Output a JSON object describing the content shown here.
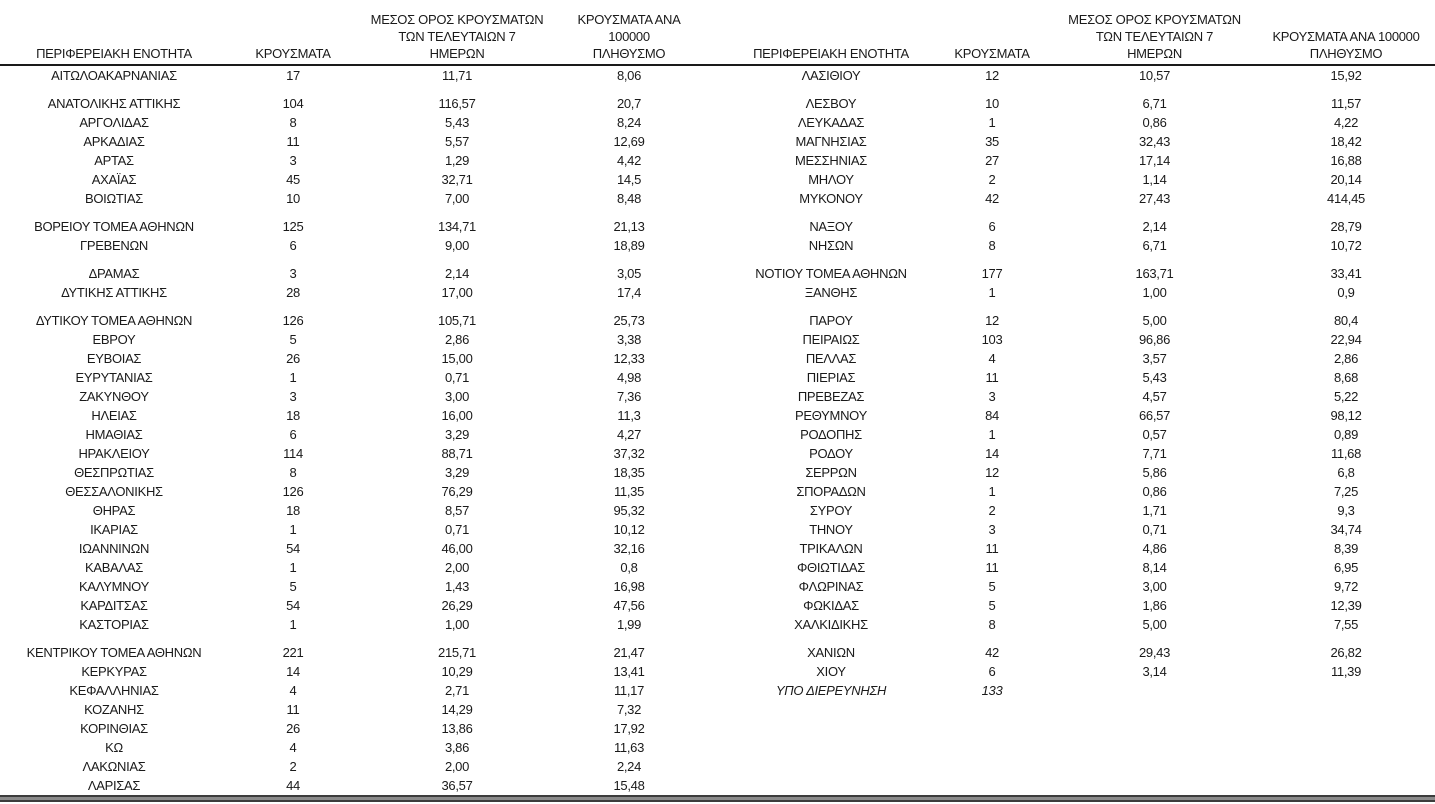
{
  "colors": {
    "text": "#1a1a1a",
    "header_rule": "#1a1a1a",
    "bottom_bar_fill": "#8a8a8a",
    "bottom_bar_edge": "#3c3c3c",
    "background": "#ffffff"
  },
  "table": {
    "headers": {
      "region": "ΠΕΡΙΦΕΡΕΙΑΚΗ ΕΝΟΤΗΤΑ",
      "cases": "ΚΡΟΥΣΜΑΤΑ",
      "avg7": "ΜΕΣΟΣ ΟΡΟΣ ΚΡΟΥΣΜΑΤΩΝ\nΤΩΝ ΤΕΛΕΥΤΑΙΩΝ 7\nΗΜΕΡΩΝ",
      "per100k": "ΚΡΟΥΣΜΑΤΑ ΑΝΑ 100000\nΠΛΗΘΥΣΜΟ"
    },
    "rows": [
      {
        "left": [
          "ΑΙΤΩΛΟΑΚΑΡΝΑΝΙΑΣ",
          "17",
          "11,71",
          "8,06"
        ],
        "right": [
          "ΛΑΣΙΘΙΟΥ",
          "12",
          "10,57",
          "15,92"
        ]
      },
      {
        "gap": true
      },
      {
        "left": [
          "ΑΝΑΤΟΛΙΚΗΣ ΑΤΤΙΚΗΣ",
          "104",
          "116,57",
          "20,7"
        ],
        "right": [
          "ΛΕΣΒΟΥ",
          "10",
          "6,71",
          "11,57"
        ]
      },
      {
        "left": [
          "ΑΡΓΟΛΙΔΑΣ",
          "8",
          "5,43",
          "8,24"
        ],
        "right": [
          "ΛΕΥΚΑΔΑΣ",
          "1",
          "0,86",
          "4,22"
        ]
      },
      {
        "left": [
          "ΑΡΚΑΔΙΑΣ",
          "11",
          "5,57",
          "12,69"
        ],
        "right": [
          "ΜΑΓΝΗΣΙΑΣ",
          "35",
          "32,43",
          "18,42"
        ]
      },
      {
        "left": [
          "ΑΡΤΑΣ",
          "3",
          "1,29",
          "4,42"
        ],
        "right": [
          "ΜΕΣΣΗΝΙΑΣ",
          "27",
          "17,14",
          "16,88"
        ]
      },
      {
        "left": [
          "ΑΧΑΪΑΣ",
          "45",
          "32,71",
          "14,5"
        ],
        "right": [
          "ΜΗΛΟΥ",
          "2",
          "1,14",
          "20,14"
        ]
      },
      {
        "left": [
          "ΒΟΙΩΤΙΑΣ",
          "10",
          "7,00",
          "8,48"
        ],
        "right": [
          "ΜΥΚΟΝΟΥ",
          "42",
          "27,43",
          "414,45"
        ]
      },
      {
        "gap": true
      },
      {
        "left": [
          "ΒΟΡΕΙΟΥ ΤΟΜΕΑ ΑΘΗΝΩΝ",
          "125",
          "134,71",
          "21,13"
        ],
        "right": [
          "ΝΑΞΟΥ",
          "6",
          "2,14",
          "28,79"
        ]
      },
      {
        "left": [
          "ΓΡΕΒΕΝΩΝ",
          "6",
          "9,00",
          "18,89"
        ],
        "right": [
          "ΝΗΣΩΝ",
          "8",
          "6,71",
          "10,72"
        ]
      },
      {
        "gap": true
      },
      {
        "left": [
          "ΔΡΑΜΑΣ",
          "3",
          "2,14",
          "3,05"
        ],
        "right": [
          "ΝΟΤΙΟΥ ΤΟΜΕΑ ΑΘΗΝΩΝ",
          "177",
          "163,71",
          "33,41"
        ]
      },
      {
        "left": [
          "ΔΥΤΙΚΗΣ ΑΤΤΙΚΗΣ",
          "28",
          "17,00",
          "17,4"
        ],
        "right": [
          "ΞΑΝΘΗΣ",
          "1",
          "1,00",
          "0,9"
        ]
      },
      {
        "gap": true
      },
      {
        "left": [
          "ΔΥΤΙΚΟΥ ΤΟΜΕΑ ΑΘΗΝΩΝ",
          "126",
          "105,71",
          "25,73"
        ],
        "right": [
          "ΠΑΡΟΥ",
          "12",
          "5,00",
          "80,4"
        ]
      },
      {
        "left": [
          "ΕΒΡΟΥ",
          "5",
          "2,86",
          "3,38"
        ],
        "right": [
          "ΠΕΙΡΑΙΩΣ",
          "103",
          "96,86",
          "22,94"
        ]
      },
      {
        "left": [
          "ΕΥΒΟΙΑΣ",
          "26",
          "15,00",
          "12,33"
        ],
        "right": [
          "ΠΕΛΛΑΣ",
          "4",
          "3,57",
          "2,86"
        ]
      },
      {
        "left": [
          "ΕΥΡΥΤΑΝΙΑΣ",
          "1",
          "0,71",
          "4,98"
        ],
        "right": [
          "ΠΙΕΡΙΑΣ",
          "11",
          "5,43",
          "8,68"
        ]
      },
      {
        "left": [
          "ΖΑΚΥΝΘΟΥ",
          "3",
          "3,00",
          "7,36"
        ],
        "right": [
          "ΠΡΕΒΕΖΑΣ",
          "3",
          "4,57",
          "5,22"
        ]
      },
      {
        "left": [
          "ΗΛΕΙΑΣ",
          "18",
          "16,00",
          "11,3"
        ],
        "right": [
          "ΡΕΘΥΜΝΟΥ",
          "84",
          "66,57",
          "98,12"
        ]
      },
      {
        "left": [
          "ΗΜΑΘΙΑΣ",
          "6",
          "3,29",
          "4,27"
        ],
        "right": [
          "ΡΟΔΟΠΗΣ",
          "1",
          "0,57",
          "0,89"
        ]
      },
      {
        "left": [
          "ΗΡΑΚΛΕΙΟΥ",
          "114",
          "88,71",
          "37,32"
        ],
        "right": [
          "ΡΟΔΟΥ",
          "14",
          "7,71",
          "11,68"
        ]
      },
      {
        "left": [
          "ΘΕΣΠΡΩΤΙΑΣ",
          "8",
          "3,29",
          "18,35"
        ],
        "right": [
          "ΣΕΡΡΩΝ",
          "12",
          "5,86",
          "6,8"
        ]
      },
      {
        "left": [
          "ΘΕΣΣΑΛΟΝΙΚΗΣ",
          "126",
          "76,29",
          "11,35"
        ],
        "right": [
          "ΣΠΟΡΑΔΩΝ",
          "1",
          "0,86",
          "7,25"
        ]
      },
      {
        "left": [
          "ΘΗΡΑΣ",
          "18",
          "8,57",
          "95,32"
        ],
        "right": [
          "ΣΥΡΟΥ",
          "2",
          "1,71",
          "9,3"
        ]
      },
      {
        "left": [
          "ΙΚΑΡΙΑΣ",
          "1",
          "0,71",
          "10,12"
        ],
        "right": [
          "ΤΗΝΟΥ",
          "3",
          "0,71",
          "34,74"
        ]
      },
      {
        "left": [
          "ΙΩΑΝΝΙΝΩΝ",
          "54",
          "46,00",
          "32,16"
        ],
        "right": [
          "ΤΡΙΚΑΛΩΝ",
          "11",
          "4,86",
          "8,39"
        ]
      },
      {
        "left": [
          "ΚΑΒΑΛΑΣ",
          "1",
          "2,00",
          "0,8"
        ],
        "right": [
          "ΦΘΙΩΤΙΔΑΣ",
          "11",
          "8,14",
          "6,95"
        ]
      },
      {
        "left": [
          "ΚΑΛΥΜΝΟΥ",
          "5",
          "1,43",
          "16,98"
        ],
        "right": [
          "ΦΛΩΡΙΝΑΣ",
          "5",
          "3,00",
          "9,72"
        ]
      },
      {
        "left": [
          "ΚΑΡΔΙΤΣΑΣ",
          "54",
          "26,29",
          "47,56"
        ],
        "right": [
          "ΦΩΚΙΔΑΣ",
          "5",
          "1,86",
          "12,39"
        ]
      },
      {
        "left": [
          "ΚΑΣΤΟΡΙΑΣ",
          "1",
          "1,00",
          "1,99"
        ],
        "right": [
          "ΧΑΛΚΙΔΙΚΗΣ",
          "8",
          "5,00",
          "7,55"
        ]
      },
      {
        "gap": true
      },
      {
        "left": [
          "ΚΕΝΤΡΙΚΟΥ ΤΟΜΕΑ ΑΘΗΝΩΝ",
          "221",
          "215,71",
          "21,47"
        ],
        "right": [
          "ΧΑΝΙΩΝ",
          "42",
          "29,43",
          "26,82"
        ]
      },
      {
        "left": [
          "ΚΕΡΚΥΡΑΣ",
          "14",
          "10,29",
          "13,41"
        ],
        "right": [
          "ΧΙΟΥ",
          "6",
          "3,14",
          "11,39"
        ]
      },
      {
        "left": [
          "ΚΕΦΑΛΛΗΝΙΑΣ",
          "4",
          "2,71",
          "11,17"
        ],
        "right": [
          "ΥΠΟ ΔΙΕΡΕΥΝΗΣΗ",
          "133",
          "",
          ""
        ],
        "right_italic": true
      },
      {
        "left": [
          "ΚΟΖΑΝΗΣ",
          "11",
          "14,29",
          "7,32"
        ],
        "right": [
          "",
          "",
          "",
          ""
        ]
      },
      {
        "left": [
          "ΚΟΡΙΝΘΙΑΣ",
          "26",
          "13,86",
          "17,92"
        ],
        "right": [
          "",
          "",
          "",
          ""
        ]
      },
      {
        "left": [
          "ΚΩ",
          "4",
          "3,86",
          "11,63"
        ],
        "right": [
          "",
          "",
          "",
          ""
        ]
      },
      {
        "left": [
          "ΛΑΚΩΝΙΑΣ",
          "2",
          "2,00",
          "2,24"
        ],
        "right": [
          "",
          "",
          "",
          ""
        ]
      },
      {
        "left": [
          "ΛΑΡΙΣΑΣ",
          "44",
          "36,57",
          "15,48"
        ],
        "right": [
          "",
          "",
          "",
          ""
        ]
      }
    ]
  }
}
